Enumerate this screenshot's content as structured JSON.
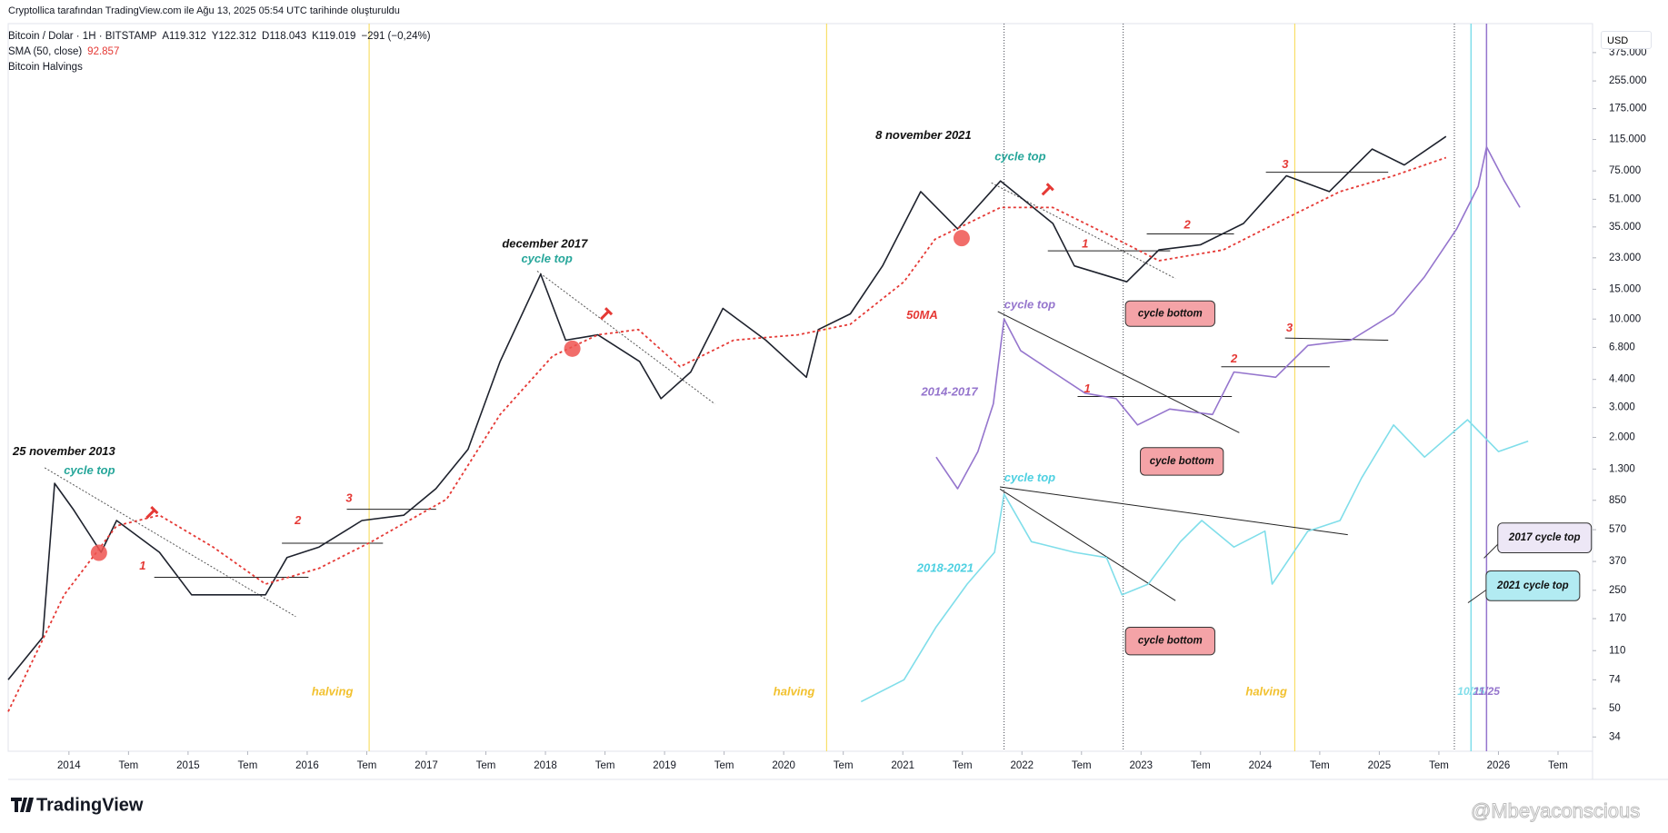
{
  "header": {
    "credit": "Cryptollica tarafından TradingView.com ile Ağu 13, 2025 05:54 UTC tarihinde oluşturuldu",
    "ohlc": [
      "A119.312",
      "Y122.312",
      "D118.043",
      "K119.019",
      "−291 (−0,24%)"
    ],
    "currency": "USD"
  },
  "chart_data": {
    "type": "line",
    "log": true,
    "grid": false,
    "xlim": [
      2013.49,
      2026.79
    ],
    "xticks": [
      {
        "value": 2014,
        "label": "2014"
      },
      {
        "value": 2014.5,
        "label": "Tem"
      },
      {
        "value": 2015,
        "label": "2015"
      },
      {
        "value": 2015.5,
        "label": "Tem"
      },
      {
        "value": 2016,
        "label": "2016"
      },
      {
        "value": 2016.5,
        "label": "Tem"
      },
      {
        "value": 2017,
        "label": "2017"
      },
      {
        "value": 2017.5,
        "label": "Tem"
      },
      {
        "value": 2018,
        "label": "2018"
      },
      {
        "value": 2018.5,
        "label": "Tem"
      },
      {
        "value": 2019,
        "label": "2019"
      },
      {
        "value": 2019.5,
        "label": "Tem"
      },
      {
        "value": 2020,
        "label": "2020"
      },
      {
        "value": 2020.5,
        "label": "Tem"
      },
      {
        "value": 2021,
        "label": "2021"
      },
      {
        "value": 2021.5,
        "label": "Tem"
      },
      {
        "value": 2022,
        "label": "2022"
      },
      {
        "value": 2022.5,
        "label": "Tem"
      },
      {
        "value": 2023,
        "label": "2023"
      },
      {
        "value": 2023.5,
        "label": "Tem"
      },
      {
        "value": 2024,
        "label": "2024"
      },
      {
        "value": 2024.5,
        "label": "Tem"
      },
      {
        "value": 2025,
        "label": "2025"
      },
      {
        "value": 2025.5,
        "label": "Tem"
      },
      {
        "value": 2026,
        "label": "2026"
      },
      {
        "value": 2026.5,
        "label": "Tem"
      }
    ],
    "ylim": [
      28,
      556000
    ],
    "yticks": [
      {
        "value": 375000,
        "label": "375.000"
      },
      {
        "value": 255000,
        "label": "255.000"
      },
      {
        "value": 175000,
        "label": "175.000"
      },
      {
        "value": 115000,
        "label": "115.000"
      },
      {
        "value": 75000,
        "label": "75.000"
      },
      {
        "value": 51000,
        "label": "51.000"
      },
      {
        "value": 35000,
        "label": "35.000"
      },
      {
        "value": 23000,
        "label": "23.000"
      },
      {
        "value": 15000,
        "label": "15.000"
      },
      {
        "value": 10000,
        "label": "10.000"
      },
      {
        "value": 6800,
        "label": "6.800"
      },
      {
        "value": 4400,
        "label": "4.400"
      },
      {
        "value": 3000,
        "label": "3.000"
      },
      {
        "value": 2000,
        "label": "2.000"
      },
      {
        "value": 1300,
        "label": "1.300"
      },
      850,
      570,
      370,
      250,
      170,
      110,
      74,
      50,
      34
    ],
    "series": [
      {
        "name": "Bitcoin / Dolar · 1H · BITSTAMP",
        "color": "#1e222d",
        "style": "solid",
        "x": [
          2013.49,
          2013.78,
          2013.88,
          2014.04,
          2014.27,
          2014.4,
          2014.76,
          2015.03,
          2015.38,
          2015.65,
          2015.83,
          2016.1,
          2016.46,
          2016.81,
          2017.08,
          2017.35,
          2017.62,
          2017.96,
          2018.17,
          2018.44,
          2018.79,
          2018.97,
          2019.22,
          2019.49,
          2019.85,
          2020.19,
          2020.29,
          2020.56,
          2020.83,
          2021.15,
          2021.46,
          2021.82,
          2022.26,
          2022.44,
          2022.88,
          2023.15,
          2023.5,
          2023.86,
          2024.22,
          2024.58,
          2024.94,
          2025.21,
          2025.56
        ],
        "values": [
          74,
          132,
          1070,
          745,
          419,
          646,
          419,
          235,
          235,
          235,
          390,
          450,
          646,
          694,
          995,
          1700,
          5620,
          18400,
          7500,
          8070,
          5620,
          3390,
          4870,
          11560,
          7500,
          4530,
          8670,
          10730,
          20600,
          56600,
          34100,
          65400,
          36700,
          20600,
          16600,
          25600,
          27500,
          36700,
          70200,
          56600,
          100900,
          81300,
          119900
        ]
      },
      {
        "name": "SMA (50, close)",
        "color": "#e53935",
        "style": "dotted",
        "x": [
          2013.49,
          2013.96,
          2014.4,
          2014.76,
          2015.21,
          2015.65,
          2016.1,
          2016.54,
          2017.17,
          2017.62,
          2018.06,
          2018.44,
          2018.78,
          2019.13,
          2019.58,
          2020.12,
          2020.56,
          2021.01,
          2021.27,
          2021.82,
          2022.26,
          2022.71,
          2023.15,
          2023.69,
          2024.13,
          2024.67,
          2025.12,
          2025.56
        ],
        "values": [
          48,
          235,
          601,
          694,
          450,
          272,
          337,
          484,
          862,
          2730,
          6040,
          8070,
          8670,
          5230,
          7500,
          8070,
          9320,
          16600,
          29600,
          45600,
          45600,
          31800,
          22100,
          25600,
          36700,
          56600,
          70200,
          89900
        ]
      },
      {
        "name": "2014-2017",
        "color": "#9575cd",
        "style": "solid",
        "x": [
          2021.28,
          2021.46,
          2021.63,
          2021.76,
          2021.85,
          2021.99,
          2022.26,
          2022.53,
          2022.79,
          2022.97,
          2023.24,
          2023.6,
          2023.78,
          2024.13,
          2024.4,
          2024.76,
          2025.12,
          2025.38,
          2025.65,
          2025.83,
          2025.9,
          2026.05,
          2026.18
        ],
        "values": [
          1530,
          995,
          1650,
          3160,
          10000,
          6500,
          4870,
          3650,
          3390,
          2370,
          2940,
          2730,
          4870,
          4530,
          6980,
          7500,
          10730,
          17800,
          34100,
          60800,
          103800,
          65400,
          45600
        ]
      },
      {
        "name": "2018-2021",
        "color": "#80deea",
        "style": "solid",
        "x": [
          2020.65,
          2021.01,
          2021.28,
          2021.54,
          2021.77,
          2021.85,
          2022.08,
          2022.44,
          2022.71,
          2022.84,
          2023.06,
          2023.33,
          2023.51,
          2023.78,
          2024.04,
          2024.1,
          2024.4,
          2024.67,
          2024.85,
          2025.12,
          2025.38,
          2025.74,
          2026.0,
          2026.25
        ],
        "values": [
          55,
          74,
          152,
          272,
          419,
          926,
          484,
          419,
          390,
          235,
          272,
          484,
          646,
          450,
          559,
          272,
          559,
          646,
          1150,
          2370,
          1530,
          2540,
          1650,
          1900
        ]
      }
    ],
    "sma_last": "92.857",
    "halvings_name": "Bitcoin Halvings",
    "halvings": [
      2016.52,
      2020.36,
      2024.29
    ],
    "halving_label": "halving",
    "cycle_dates": [
      2021.85,
      2022.85,
      2025.63
    ],
    "projection_dates": [
      2025.77,
      2025.9
    ],
    "projection_labels": [
      "10/25",
      "11/25"
    ],
    "annotations": [
      "25 november 2013",
      "cycle top",
      "december 2017",
      "cycle top",
      "8 november 2021",
      "cycle top",
      "cycle top",
      "cycle top",
      "50MA",
      "1",
      "2",
      "3",
      "1",
      "2",
      "3",
      "1",
      "2",
      "3"
    ],
    "callouts": [
      "cycle bottom",
      "cycle bottom",
      "cycle bottom",
      "2017 cycle top",
      "2021 cycle top"
    ]
  },
  "footer": {
    "logo": "TradingView",
    "watermark": "@Mbeyaconscious"
  }
}
